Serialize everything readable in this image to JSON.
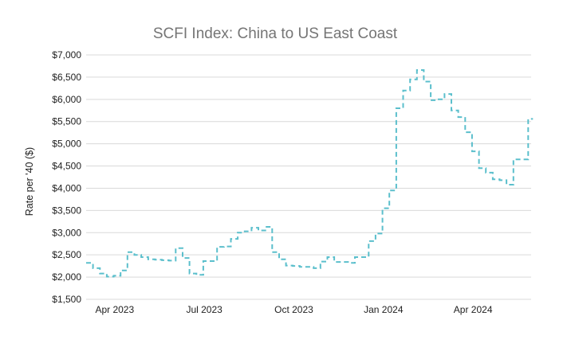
{
  "chart_data": {
    "type": "line",
    "title": "SCFI Index: China to US East Coast",
    "xlabel": "",
    "ylabel": "Rate per '40 ($)",
    "ylim": [
      1500,
      7000
    ],
    "yticks": [
      1500,
      2000,
      2500,
      3000,
      3500,
      4000,
      4500,
      5000,
      5500,
      6000,
      6500,
      7000
    ],
    "ytick_labels": [
      "$1,500",
      "$2,000",
      "$2,500",
      "$3,000",
      "$3,500",
      "$4,000",
      "$4,500",
      "$5,000",
      "$5,500",
      "$6,000",
      "$6,500",
      "$7,000"
    ],
    "xlim": [
      "2023-03-10",
      "2024-06-04"
    ],
    "xticks": [
      "2023-04-08",
      "2023-07-08",
      "2023-10-07",
      "2024-01-06",
      "2024-04-06"
    ],
    "xtick_labels": [
      "Apr 2023",
      "Jul 2023",
      "Oct 2023",
      "Jan 2024",
      "Apr 2024"
    ],
    "grid": "horizontal",
    "line_style": "dashed step",
    "colors": {
      "series": "#5bbfcc",
      "grid": "#d9d9d9",
      "title": "#757575",
      "text": "#222222"
    },
    "series": [
      {
        "x": [
          "2023-03-10",
          "2023-03-17",
          "2023-03-24",
          "2023-03-31",
          "2023-04-07",
          "2023-04-14",
          "2023-04-21",
          "2023-04-28",
          "2023-05-05",
          "2023-05-12",
          "2023-05-19",
          "2023-05-26",
          "2023-06-02",
          "2023-06-09",
          "2023-06-16",
          "2023-06-23",
          "2023-06-30",
          "2023-07-07",
          "2023-07-14",
          "2023-07-21",
          "2023-07-28",
          "2023-08-04",
          "2023-08-11",
          "2023-08-18",
          "2023-08-25",
          "2023-09-01",
          "2023-09-08",
          "2023-09-15",
          "2023-09-22",
          "2023-09-29",
          "2023-10-06",
          "2023-10-13",
          "2023-10-20",
          "2023-10-27",
          "2023-11-03",
          "2023-11-10",
          "2023-11-17",
          "2023-11-24",
          "2023-12-01",
          "2023-12-08",
          "2023-12-15",
          "2023-12-22",
          "2023-12-29",
          "2024-01-05",
          "2024-01-12",
          "2024-01-19",
          "2024-01-26",
          "2024-02-02",
          "2024-02-09",
          "2024-02-16",
          "2024-02-23",
          "2024-03-01",
          "2024-03-08",
          "2024-03-15",
          "2024-03-22",
          "2024-03-29",
          "2024-04-05",
          "2024-04-12",
          "2024-04-19",
          "2024-04-26",
          "2024-05-03",
          "2024-05-10",
          "2024-05-17",
          "2024-05-24"
        ],
        "y": [
          2320,
          2200,
          2080,
          2010,
          2030,
          2150,
          2560,
          2500,
          2450,
          2400,
          2390,
          2380,
          2370,
          2650,
          2430,
          2080,
          2050,
          2360,
          2360,
          2680,
          2690,
          2860,
          3000,
          3030,
          3110,
          3050,
          3130,
          2560,
          2400,
          2260,
          2250,
          2230,
          2230,
          2200,
          2350,
          2450,
          2340,
          2340,
          2320,
          2450,
          2450,
          2810,
          2980,
          3550,
          3950,
          5800,
          6200,
          6450,
          6660,
          6400,
          5980,
          6000,
          6120,
          5750,
          5600,
          5260,
          4830,
          4450,
          4350,
          4200,
          4180,
          4080,
          4650,
          4650
        ]
      }
    ],
    "end_values": {
      "x": "2024-06-01",
      "y": 5560
    }
  }
}
